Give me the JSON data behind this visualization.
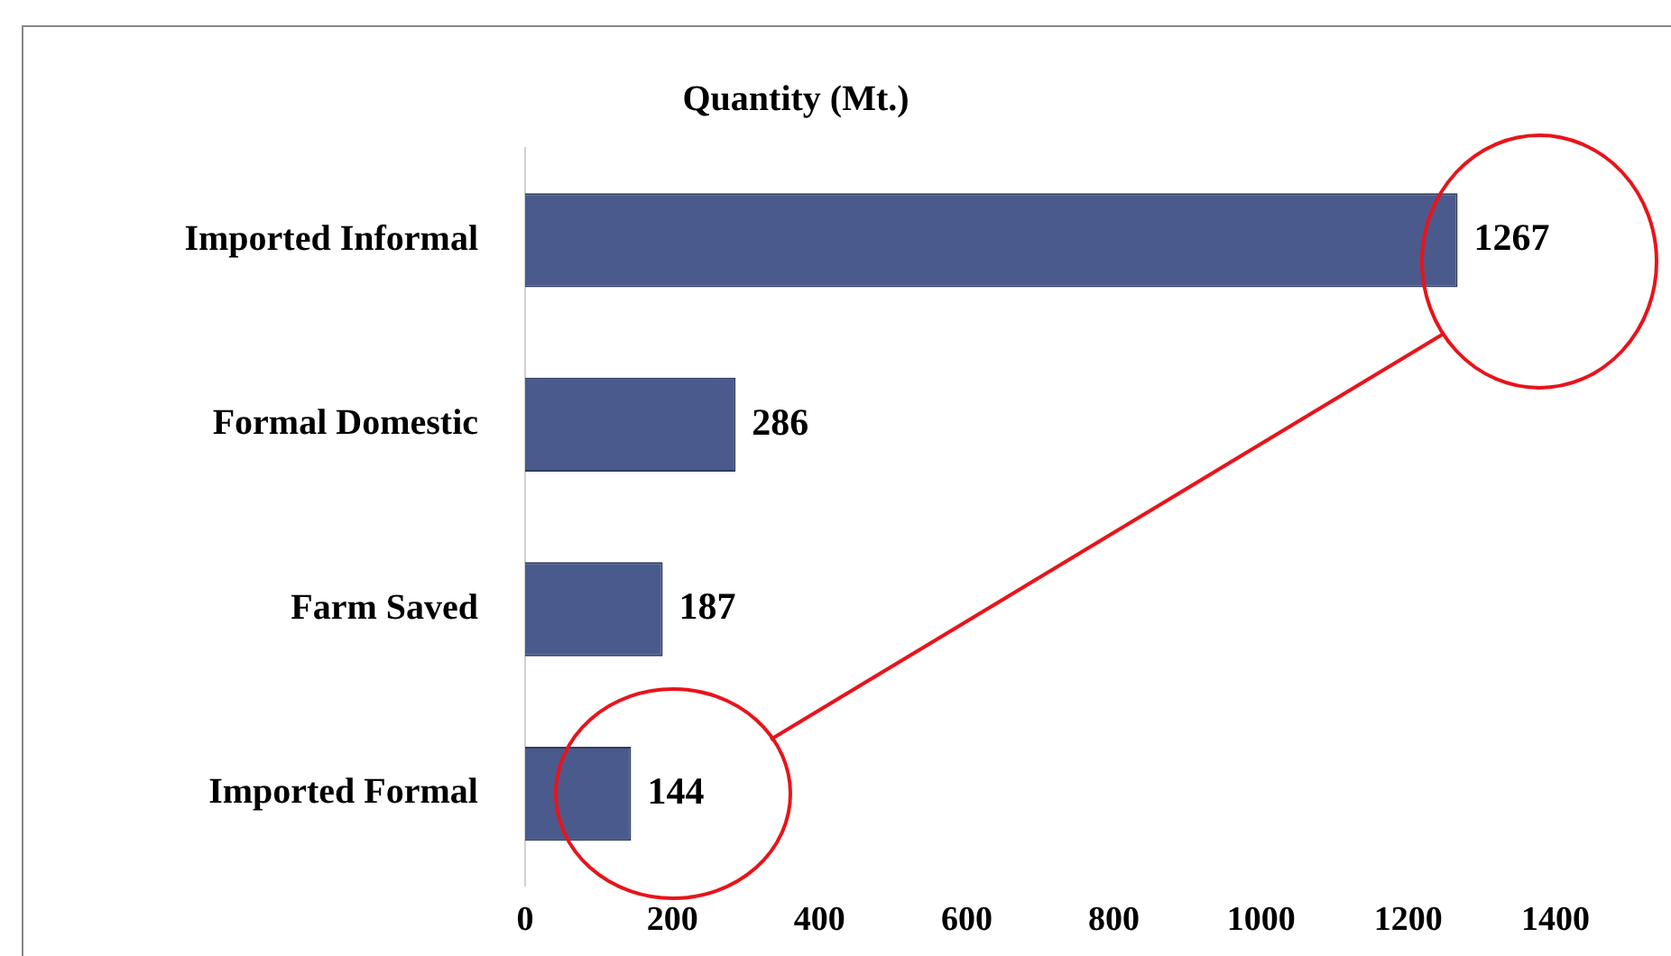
{
  "chart_data": {
    "type": "bar",
    "orientation": "horizontal",
    "title": "Quantity (Mt.)",
    "categories": [
      "Imported Informal",
      "Formal Domestic",
      "Farm Saved",
      "Imported Formal"
    ],
    "values": [
      1267,
      286,
      187,
      144
    ],
    "color": "#4a5a8c",
    "xlim": [
      0,
      1400
    ],
    "xticks": [
      0,
      200,
      400,
      600,
      800,
      1000,
      1200,
      1400
    ],
    "data_labels": true,
    "grid": false,
    "legend": false
  }
}
